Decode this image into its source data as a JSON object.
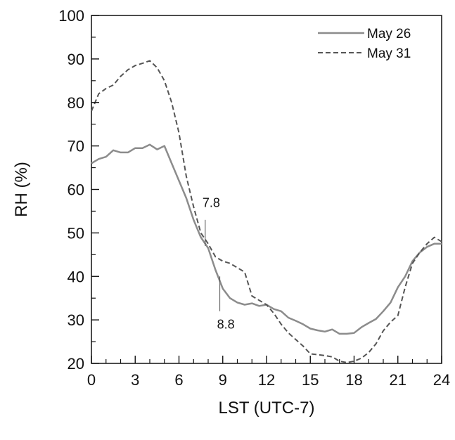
{
  "chart_data": {
    "type": "line",
    "xlabel": "LST (UTC-7)",
    "ylabel": "RH (%)",
    "xlim": [
      0,
      24
    ],
    "ylim": [
      20,
      100
    ],
    "xticks": [
      0,
      3,
      6,
      9,
      12,
      15,
      18,
      21,
      24
    ],
    "yticks": [
      20,
      30,
      40,
      50,
      60,
      70,
      80,
      90,
      100
    ],
    "x_minor_step": 1,
    "y_minor_step": 5,
    "grid": false,
    "legend_position": "top-right",
    "series": [
      {
        "name": "May 26",
        "style": "solid",
        "color": "#8c8c8c",
        "x": [
          0,
          0.5,
          1,
          1.5,
          2,
          2.5,
          3,
          3.5,
          4,
          4.5,
          5,
          5.5,
          6,
          6.5,
          7,
          7.5,
          8,
          8.5,
          9,
          9.5,
          10,
          10.5,
          11,
          11.5,
          12,
          12.5,
          13,
          13.5,
          14,
          14.5,
          15,
          15.5,
          16,
          16.5,
          17,
          17.5,
          18,
          18.5,
          19,
          19.5,
          20,
          20.5,
          21,
          21.5,
          22,
          22.5,
          23,
          23.5,
          24
        ],
        "values": [
          66,
          67,
          67.5,
          69,
          68.5,
          68.5,
          69.5,
          69.5,
          70.3,
          69.2,
          70,
          66,
          62,
          58,
          53,
          49,
          46.5,
          41.5,
          37.2,
          35,
          34,
          33.5,
          33.8,
          33.2,
          33.5,
          32.5,
          32,
          30.5,
          29.8,
          29,
          28,
          27.6,
          27.3,
          27.8,
          26.8,
          26.8,
          27,
          28.3,
          29.3,
          30.2,
          32,
          34,
          37.5,
          40,
          43.5,
          45.5,
          46.8,
          47.5,
          47.5
        ]
      },
      {
        "name": "May 31",
        "style": "dashed",
        "color": "#555555",
        "x": [
          0,
          0.5,
          1,
          1.5,
          2,
          2.5,
          3,
          3.5,
          4,
          4.5,
          5,
          5.5,
          6,
          6.5,
          7,
          7.5,
          8,
          8.5,
          9,
          9.5,
          10,
          10.5,
          11,
          11.5,
          12,
          12.5,
          13,
          13.5,
          14,
          14.5,
          15,
          15.5,
          16,
          16.5,
          17,
          17.5,
          18,
          18.5,
          19,
          19.5,
          20,
          20.5,
          21,
          21.5,
          22,
          22.5,
          23,
          23.5,
          24
        ],
        "values": [
          78,
          82,
          83.2,
          84,
          86,
          87.5,
          88.5,
          89,
          89.6,
          88,
          85,
          80,
          73,
          63,
          56,
          50,
          47.5,
          44.5,
          43.5,
          43,
          42,
          41,
          35.5,
          34.5,
          33.5,
          31.5,
          29,
          27,
          25.5,
          24,
          22.2,
          22,
          21.8,
          21.5,
          20.5,
          20.2,
          20.5,
          21.2,
          22.5,
          24.5,
          27.5,
          29.5,
          31,
          37.5,
          43,
          45.5,
          47.5,
          49,
          48
        ]
      }
    ],
    "annotations": [
      {
        "text": "7.8",
        "x": 7.8,
        "y_from": 47,
        "y_to": 53,
        "label_y": 56,
        "label_side": "right"
      },
      {
        "text": "8.8",
        "x": 8.8,
        "y_from": 32,
        "y_to": 40,
        "label_y": 28,
        "label_side": "right"
      }
    ]
  }
}
